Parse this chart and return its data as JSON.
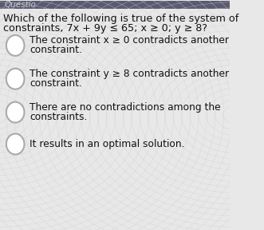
{
  "bg_color": "#e8e8e8",
  "header_bg": "#5a5a72",
  "header_text": "Questio",
  "question_line1": "Which of the following is true of the system of",
  "question_line2": "constraints, 7x + 9y ≤ 65; x ≥ 0; y ≥ 8?",
  "options": [
    [
      "The constraint x ≥ 0 contradicts another",
      "constraint."
    ],
    [
      "The constraint y ≥ 8 contradicts another",
      "constraint."
    ],
    [
      "There are no contradictions among the",
      "constraints."
    ],
    [
      "It results in an optimal solution."
    ]
  ],
  "circle_color": "#ffffff",
  "circle_edge_color": "#aaaaaa",
  "text_color": "#111111",
  "question_color": "#111111",
  "font_size_question": 9.2,
  "font_size_option": 8.8,
  "header_font_size": 7.5
}
